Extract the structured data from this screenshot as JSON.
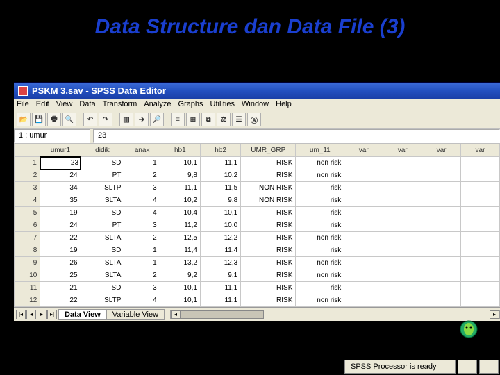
{
  "slide": {
    "title": "Data Structure dan Data File (3)"
  },
  "window": {
    "title": "PSKM 3.sav - SPSS Data Editor",
    "menubar": [
      "File",
      "Edit",
      "View",
      "Data",
      "Transform",
      "Analyze",
      "Graphs",
      "Utilities",
      "Window",
      "Help"
    ],
    "toolbar_icons": [
      "open-icon",
      "save-icon",
      "print-icon",
      "preview-icon",
      "",
      "undo-icon",
      "redo-icon",
      "",
      "chart-icon",
      "goto-icon",
      "find-icon",
      "",
      "insert-case-icon",
      "insert-var-icon",
      "split-icon",
      "weight-icon",
      "select-icon",
      "value-labels-icon"
    ],
    "cell_ref": "1 : umur",
    "cell_val": "23"
  },
  "grid": {
    "columns": [
      "umur1",
      "didik",
      "anak",
      "hb1",
      "hb2",
      "UMR_GRP",
      "um_11",
      "var",
      "var",
      "var",
      "var"
    ],
    "col_classes": [
      "col-umur1",
      "col-didik",
      "col-anak",
      "col-hb1",
      "col-hb2",
      "col-umr",
      "col-um11",
      "col-var",
      "col-var",
      "col-var",
      "col-var"
    ],
    "rows": [
      [
        "23",
        "SD",
        "1",
        "10,1",
        "11,1",
        "RISK",
        "non risk",
        "",
        "",
        "",
        ""
      ],
      [
        "24",
        "PT",
        "2",
        "9,8",
        "10,2",
        "RISK",
        "non risk",
        "",
        "",
        "",
        ""
      ],
      [
        "34",
        "SLTP",
        "3",
        "11,1",
        "11,5",
        "NON RISK",
        "risk",
        "",
        "",
        "",
        ""
      ],
      [
        "35",
        "SLTA",
        "4",
        "10,2",
        "9,8",
        "NON RISK",
        "risk",
        "",
        "",
        "",
        ""
      ],
      [
        "19",
        "SD",
        "4",
        "10,4",
        "10,1",
        "RISK",
        "risk",
        "",
        "",
        "",
        ""
      ],
      [
        "24",
        "PT",
        "3",
        "11,2",
        "10,0",
        "RISK",
        "risk",
        "",
        "",
        "",
        ""
      ],
      [
        "22",
        "SLTA",
        "2",
        "12,5",
        "12,2",
        "RISK",
        "non risk",
        "",
        "",
        "",
        ""
      ],
      [
        "19",
        "SD",
        "1",
        "11,4",
        "11,4",
        "RISK",
        "risk",
        "",
        "",
        "",
        ""
      ],
      [
        "26",
        "SLTA",
        "1",
        "13,2",
        "12,3",
        "RISK",
        "non risk",
        "",
        "",
        "",
        ""
      ],
      [
        "25",
        "SLTA",
        "2",
        "9,2",
        "9,1",
        "RISK",
        "non risk",
        "",
        "",
        "",
        ""
      ],
      [
        "21",
        "SD",
        "3",
        "10,1",
        "11,1",
        "RISK",
        "risk",
        "",
        "",
        "",
        ""
      ],
      [
        "22",
        "SLTP",
        "4",
        "10,1",
        "11,1",
        "RISK",
        "non risk",
        "",
        "",
        "",
        ""
      ]
    ],
    "selected": {
      "row": 0,
      "col": 0
    }
  },
  "tabs": {
    "data_view": "Data View",
    "variable_view": "Variable View"
  },
  "status": {
    "processor": "SPSS Processor is ready"
  },
  "colors": {
    "titlebar_start": "#3b6bd8",
    "titlebar_end": "#1a3fa8",
    "chrome": "#ece9d8",
    "gridline": "#c8c8c8",
    "slide_title": "#1a3fcf"
  }
}
